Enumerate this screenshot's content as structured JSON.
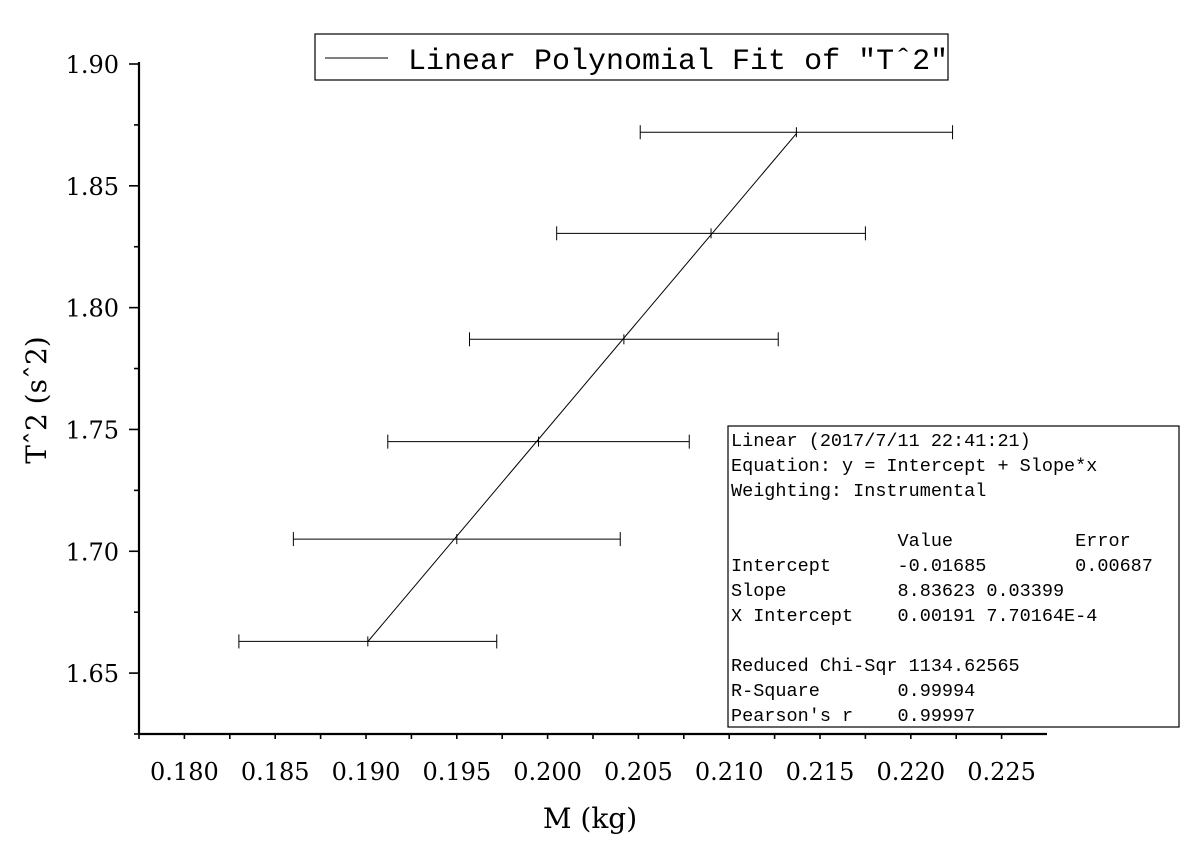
{
  "chart_data": {
    "type": "scatter",
    "xlabel": "M (kg)",
    "ylabel": "T^2 (s^2)",
    "xlim": [
      0.1775,
      0.2275
    ],
    "ylim": [
      1.625,
      1.9
    ],
    "x_ticks": [
      0.18,
      0.185,
      0.19,
      0.195,
      0.2,
      0.205,
      0.21,
      0.215,
      0.22,
      0.225
    ],
    "x_tick_labels": [
      "0.180",
      "0.185",
      "0.190",
      "0.195",
      "0.200",
      "0.205",
      "0.210",
      "0.215",
      "0.220",
      "0.225"
    ],
    "y_ticks": [
      1.65,
      1.7,
      1.75,
      1.8,
      1.85,
      1.9
    ],
    "y_tick_labels": [
      "1.65",
      "1.70",
      "1.75",
      "1.80",
      "1.85",
      "1.90"
    ],
    "series": [
      {
        "name": "T^2",
        "points": [
          {
            "x": 0.1901,
            "y": 1.663,
            "xerr": 0.0071
          },
          {
            "x": 0.195,
            "y": 1.705,
            "xerr": 0.009
          },
          {
            "x": 0.1995,
            "y": 1.745,
            "xerr": 0.0083
          },
          {
            "x": 0.2042,
            "y": 1.787,
            "xerr": 0.0085
          },
          {
            "x": 0.209,
            "y": 1.8305,
            "xerr": 0.0085
          },
          {
            "x": 0.2137,
            "y": 1.872,
            "xerr": 0.0086
          }
        ]
      }
    ],
    "fit": {
      "name": "Linear Polynomial Fit of \"T^2\"",
      "intercept": -0.01685,
      "slope": 8.83623,
      "x_range": [
        0.1901,
        0.2137
      ]
    },
    "legend": {
      "text": "Linear Polynomial Fit of ″Tˆ2″",
      "position": "top-center"
    },
    "grid": false
  },
  "axis_titles": {
    "x": "M (kg)",
    "y": "Tˆ2 (sˆ2)"
  },
  "stats_box": {
    "lines": [
      "Linear (2017/7/11 22:41:21)",
      "Equation: y = Intercept + Slope*x",
      "Weighting: Instrumental",
      "",
      "               Value           Error",
      "Intercept      -0.01685        0.00687",
      "Slope          8.83623 0.03399",
      "X Intercept    0.00191 7.70164E-4",
      "",
      "Reduced Chi-Sqr 1134.62565",
      "R-Square       0.99994",
      "Pearson's r    0.99997"
    ]
  }
}
